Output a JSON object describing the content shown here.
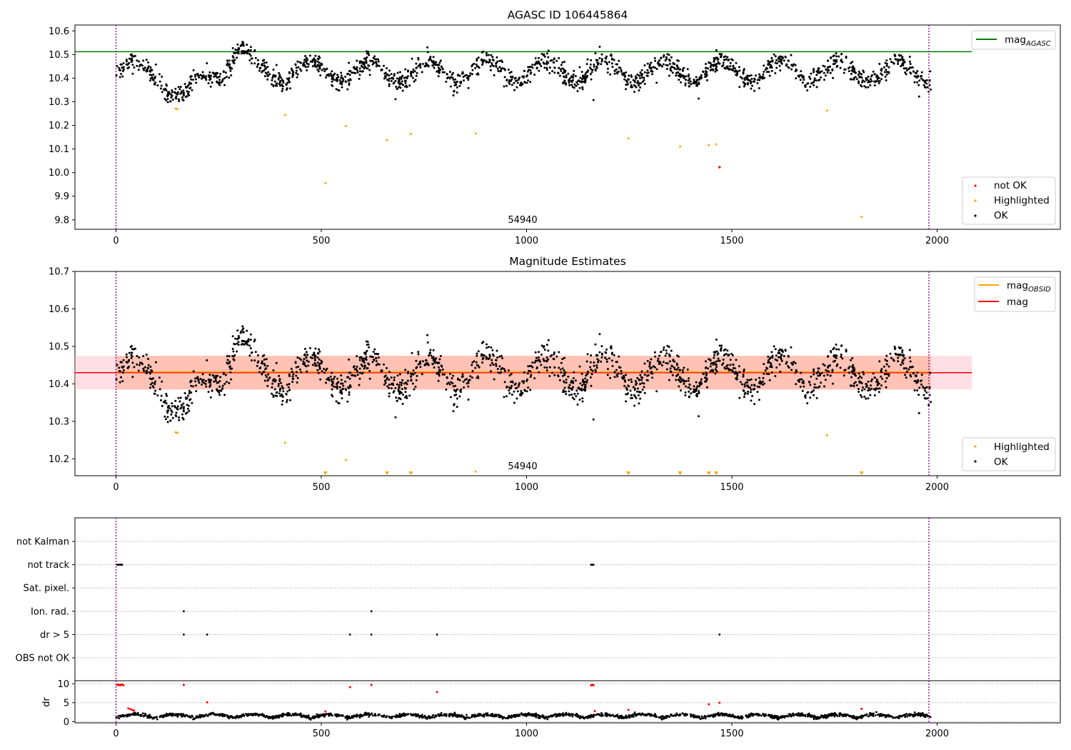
{
  "chart_data": [
    {
      "type": "scatter",
      "title": "AGASC ID 106445864",
      "annotation": "54940",
      "x_range": [
        -100,
        2300
      ],
      "ylim": [
        9.76,
        10.625
      ],
      "x_ticks": [
        0,
        500,
        1000,
        1500,
        2000
      ],
      "y_ticks": [
        9.8,
        9.9,
        10.0,
        10.1,
        10.2,
        10.3,
        10.4,
        10.5,
        10.6
      ],
      "y_tick_labels": [
        "9.8",
        "9.9",
        "10.0",
        "10.1",
        "10.2",
        "10.3",
        "10.4",
        "10.5",
        "10.6"
      ],
      "x_tick_labels": [
        "0",
        "500",
        "1000",
        "1500",
        "2000"
      ],
      "vlines": [
        0,
        1980
      ],
      "hline": {
        "label_main": "mag",
        "label_sub": "AGASC",
        "y": 10.512,
        "x_end": 2085,
        "color": "#008000"
      },
      "legend_lines": [
        {
          "main": "mag",
          "sub": "AGASC"
        }
      ],
      "legend_points": [
        {
          "label": "not OK",
          "color": "#ff0000"
        },
        {
          "label": "Highlighted",
          "color": "#ffa500"
        },
        {
          "label": "OK",
          "color": "#000000"
        }
      ],
      "highlighted_points": [
        [
          412,
          10.244
        ],
        [
          560,
          10.197
        ],
        [
          660,
          10.137
        ],
        [
          718,
          10.164
        ],
        [
          876,
          10.166
        ],
        [
          1248,
          10.145
        ],
        [
          1374,
          10.11
        ],
        [
          1444,
          10.116
        ],
        [
          1462,
          10.12
        ],
        [
          1732,
          10.263
        ],
        [
          1816,
          9.812
        ],
        [
          510,
          9.955
        ]
      ],
      "not_ok_points": [
        [
          1470,
          10.023
        ]
      ],
      "outlier_points": [
        [
          1163,
          10.307
        ],
        [
          1956,
          10.322
        ]
      ],
      "series_model": {
        "x_range": [
          0,
          1985
        ],
        "n_points": 1800,
        "mean": 10.43,
        "dip_center": 165,
        "dip_depth": 0.12,
        "bump_center": 295,
        "bump_height": 0.09,
        "period": 143,
        "amplitude": 0.045,
        "noise": 0.02
      }
    },
    {
      "type": "scatter",
      "title": "Magnitude Estimates",
      "annotation": "54940",
      "x_range": [
        -100,
        2300
      ],
      "ylim": [
        10.155,
        10.7
      ],
      "x_ticks": [
        0,
        500,
        1000,
        1500,
        2000
      ],
      "x_tick_labels": [
        "0",
        "500",
        "1000",
        "1500",
        "2000"
      ],
      "y_ticks": [
        10.2,
        10.3,
        10.4,
        10.5,
        10.6,
        10.7
      ],
      "y_tick_labels": [
        "10.2",
        "10.3",
        "10.4",
        "10.5",
        "10.6",
        "10.7"
      ],
      "vlines": [
        0,
        1980
      ],
      "legend_lines": [
        {
          "main": "mag",
          "sub": "OBSID",
          "color": "#ffa500"
        },
        {
          "main": "mag",
          "sub": "",
          "color": "#ff0000"
        }
      ],
      "legend_points": [
        {
          "label": "Highlighted",
          "color": "#ffa500"
        },
        {
          "label": "OK",
          "color": "#000000"
        }
      ],
      "mag_line": {
        "y": 10.43,
        "x_end": 2085,
        "color": "#ff0000"
      },
      "mag_obsid_line": {
        "y": 10.432,
        "x_start": 0,
        "x_end": 1985,
        "color": "#ffa500"
      },
      "band_outer": {
        "y0": 10.385,
        "y1": 10.475,
        "x_end": 2085,
        "color": "#ffc0cb"
      },
      "band_inner": {
        "y0": 10.385,
        "y1": 10.475,
        "x_start": 0,
        "x_end": 1985,
        "color": "#ffa07a"
      },
      "highlighted_points": [
        [
          412,
          10.243
        ],
        [
          560,
          10.197
        ],
        [
          876,
          10.166
        ],
        [
          1732,
          10.263
        ]
      ],
      "highlighted_triangles": [
        510,
        660,
        718,
        1248,
        1374,
        1444,
        1462,
        1816
      ],
      "outlier_points": [
        [
          1163,
          10.305
        ],
        [
          1956,
          10.322
        ]
      ]
    },
    {
      "type": "scatter",
      "flag_rows": [
        "not Kalman",
        "not track",
        "Sat. pixel.",
        "Ion. rad.",
        "dr > 5",
        "OBS not OK"
      ],
      "flag_points": {
        "not track": [
          3,
          6,
          9,
          12,
          15,
          1157,
          1160,
          1163
        ],
        "Ion. rad.": [
          165,
          622
        ],
        "dr > 5": [
          165,
          222,
          570,
          622,
          782,
          1470
        ]
      },
      "dr_axis": {
        "ylabel": "dr",
        "y_ticks": [
          0,
          5,
          10
        ],
        "y_tick_labels": [
          "0",
          "5",
          "10"
        ],
        "ylim": [
          -0.3,
          10.8
        ]
      },
      "x_range": [
        -100,
        2300
      ],
      "x_ticks": [
        0,
        500,
        1000,
        1500,
        2000
      ],
      "x_tick_labels": [
        "0",
        "500",
        "1000",
        "1500",
        "2000"
      ],
      "vlines": [
        0,
        1980
      ],
      "dr_red_points": [
        [
          3,
          9.7
        ],
        [
          6,
          9.8
        ],
        [
          9,
          9.6
        ],
        [
          12,
          9.7
        ],
        [
          15,
          9.8
        ],
        [
          18,
          9.6
        ],
        [
          165,
          9.7
        ],
        [
          222,
          5.1
        ],
        [
          570,
          9.1
        ],
        [
          622,
          9.7
        ],
        [
          782,
          7.8
        ],
        [
          1157,
          9.6
        ],
        [
          1160,
          9.7
        ],
        [
          1163,
          9.6
        ],
        [
          1166,
          2.8
        ],
        [
          1248,
          3.1
        ],
        [
          1444,
          4.6
        ],
        [
          1470,
          5.0
        ],
        [
          1816,
          3.4
        ],
        [
          30,
          3.5
        ],
        [
          35,
          3.3
        ],
        [
          40,
          3.1
        ],
        [
          44,
          2.9
        ],
        [
          510,
          2.7
        ]
      ],
      "dr_model": {
        "x_range": [
          0,
          1985
        ],
        "n_points": 1800,
        "base": 1.0,
        "amplitude": 0.9,
        "period": 95
      }
    }
  ]
}
